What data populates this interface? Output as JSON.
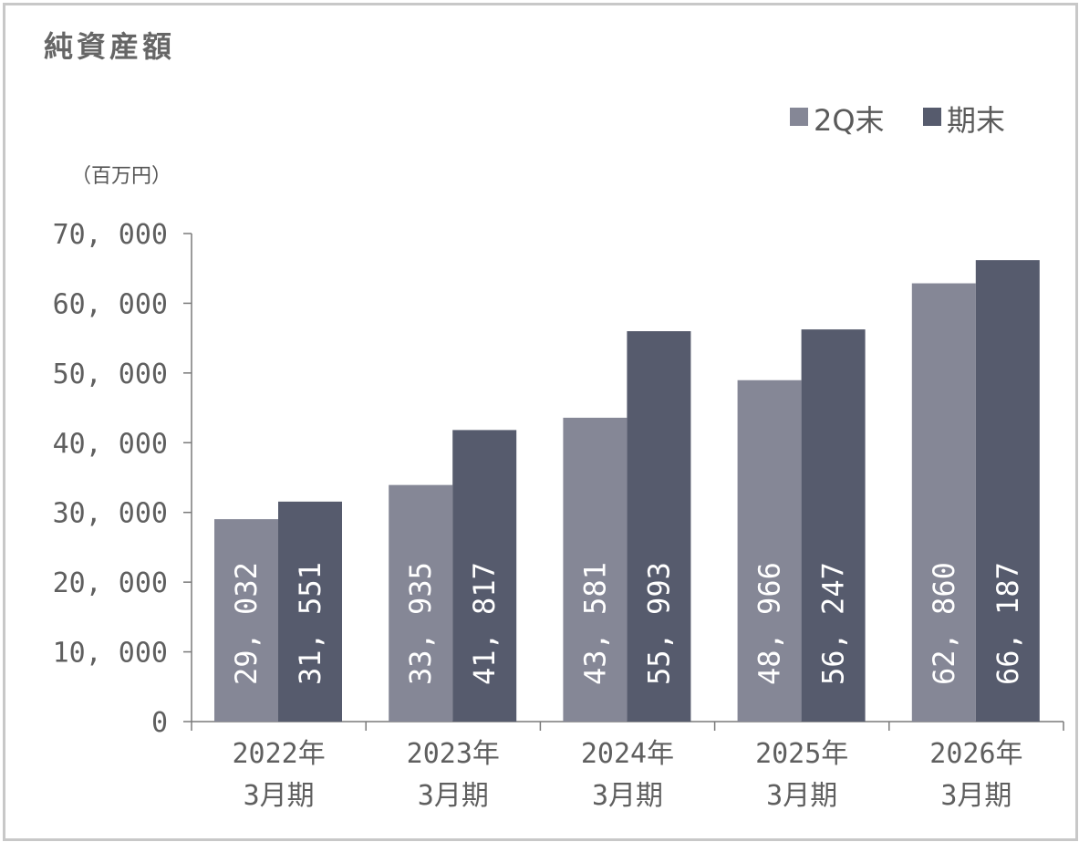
{
  "chart_data": {
    "type": "bar",
    "title": "純資産額",
    "unit_label": "（百万円）",
    "categories": [
      [
        "2022年",
        "3月期"
      ],
      [
        "2023年",
        "3月期"
      ],
      [
        "2024年",
        "3月期"
      ],
      [
        "2025年",
        "3月期"
      ],
      [
        "2026年",
        "3月期"
      ]
    ],
    "series": [
      {
        "name": "2Q末",
        "color": "#858796",
        "values": [
          29032,
          33935,
          43581,
          48966,
          62860
        ],
        "labels": [
          "29, 032",
          "33, 935",
          "43, 581",
          "48, 966",
          "62, 860"
        ]
      },
      {
        "name": "期末",
        "color": "#565b6d",
        "values": [
          31551,
          41817,
          55993,
          56247,
          66187
        ],
        "labels": [
          "31, 551",
          "41, 817",
          "55, 993",
          "56, 247",
          "66, 187"
        ]
      }
    ],
    "ylim": [
      0,
      70000
    ],
    "yticks": [
      0,
      10000,
      20000,
      30000,
      40000,
      50000,
      60000,
      70000
    ],
    "ytick_labels": [
      "0",
      "10, 000",
      "20, 000",
      "30, 000",
      "40, 000",
      "50, 000",
      "60, 000",
      "70, 000"
    ],
    "legend_position": "top-right",
    "grid": false
  }
}
